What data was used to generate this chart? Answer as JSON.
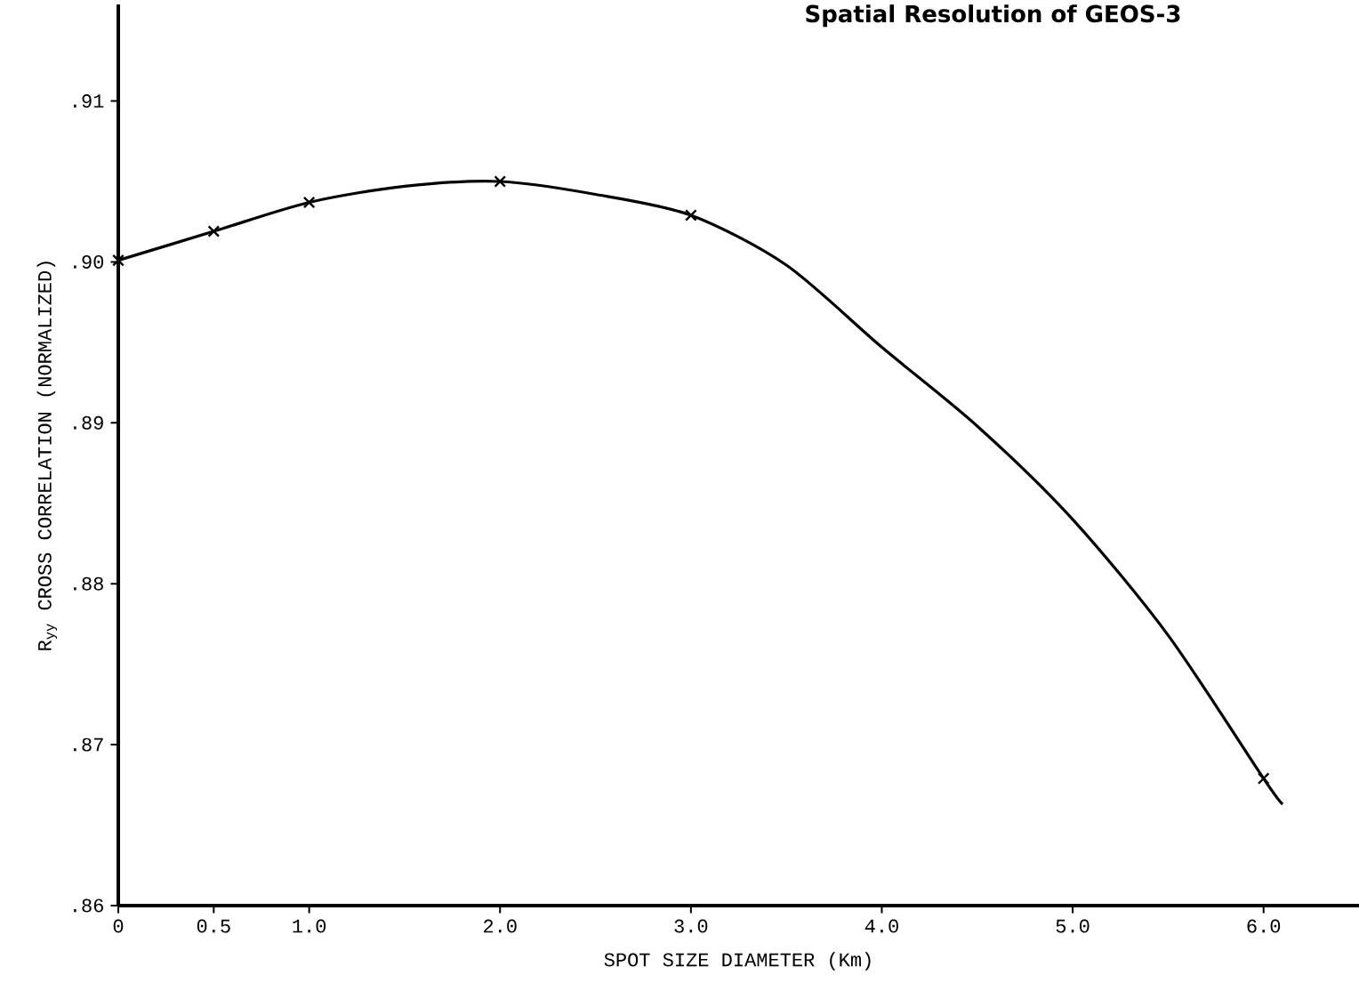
{
  "chart_data": {
    "type": "line",
    "title": "Spatial Resolution of  GEOS-3",
    "xlabel": "SPOT SIZE DIAMETER (Km)",
    "ylabel": "R$_{yy}$ CROSS CORRELATION (NORMALIZED)",
    "xlim": [
      0,
      6.5
    ],
    "ylim": [
      0.86,
      0.916
    ],
    "xticks": [
      0,
      {
        "value": 0.5,
        "label": "0.5"
      },
      {
        "value": 1.0,
        "label": "1.0"
      },
      {
        "value": 2.0,
        "label": "2.0"
      },
      {
        "value": 3.0,
        "label": "3.0"
      },
      {
        "value": 4.0,
        "label": "4.0"
      },
      {
        "value": 5.0,
        "label": "5.0"
      },
      {
        "value": 6.0,
        "label": "6.0"
      }
    ],
    "yticks": [
      {
        "value": 0.86,
        "label": ".86"
      },
      {
        "value": 0.87,
        "label": ".87"
      },
      {
        "value": 0.88,
        "label": ".88"
      },
      {
        "value": 0.89,
        "label": ".89"
      },
      {
        "value": 0.9,
        "label": ".90"
      },
      {
        "value": 0.91,
        "label": ".91"
      }
    ],
    "grid": false,
    "series": [
      {
        "color": "#000000",
        "marker": "none",
        "line_style": "solid",
        "x": [
          0,
          0.5,
          1.0,
          1.5,
          2.0,
          2.5,
          3.0,
          3.5,
          4.0,
          4.5,
          5.0,
          5.5,
          6.0,
          6.1
        ],
        "values": [
          0.9001,
          0.9019,
          0.9037,
          0.9047,
          0.905,
          0.9042,
          0.9029,
          0.8998,
          0.8947,
          0.8898,
          0.884,
          0.8768,
          0.8679,
          0.8663
        ]
      },
      {
        "type": "scatter",
        "color": "#000000",
        "marker": "cross",
        "x": [
          0,
          0.5,
          1.0,
          2.0,
          3.0,
          6.0
        ],
        "values": [
          0.9001,
          0.9019,
          0.9037,
          0.905,
          0.9029,
          0.8679
        ]
      }
    ]
  }
}
